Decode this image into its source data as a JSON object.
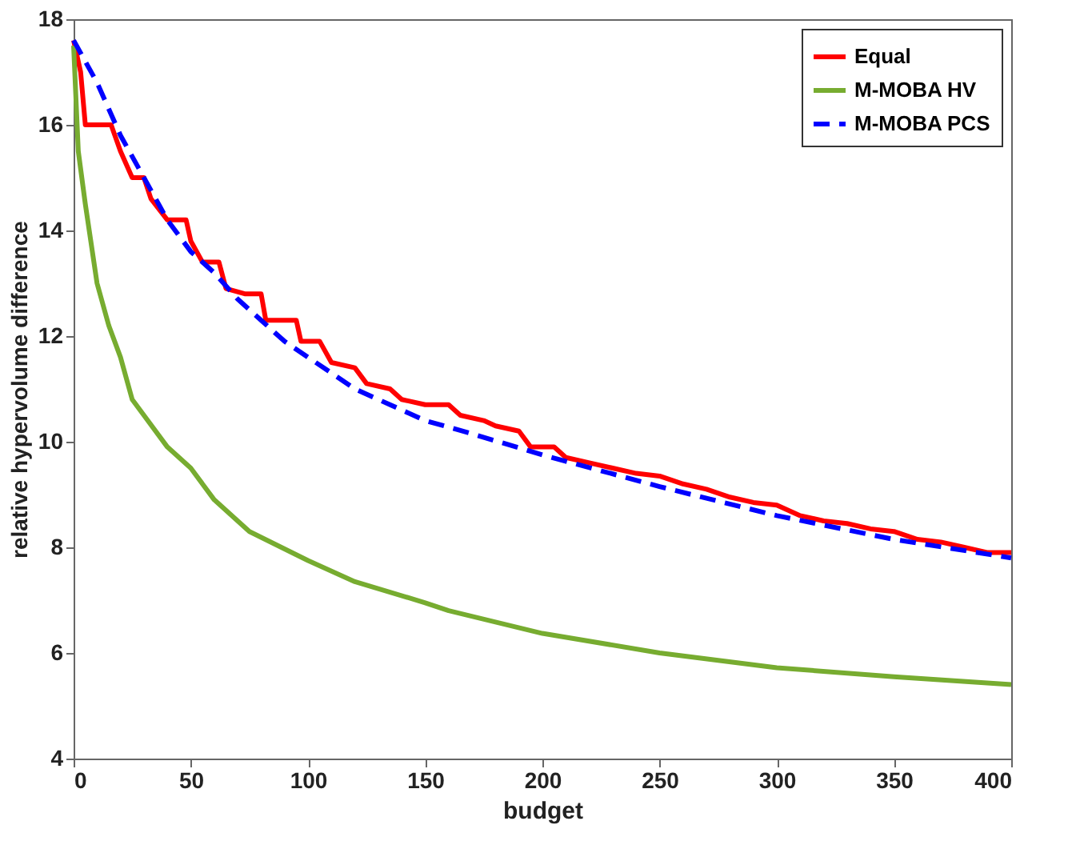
{
  "chart_data": {
    "type": "line",
    "xlabel": "budget",
    "ylabel": "relative hypervolume difference",
    "xlim": [
      0,
      400
    ],
    "xticks": [
      0,
      50,
      100,
      150,
      200,
      250,
      300,
      350,
      400
    ],
    "ylim": [
      4,
      18
    ],
    "yticks": [
      4,
      6,
      8,
      10,
      12,
      14,
      16,
      18
    ],
    "grid": false,
    "legend": "top right",
    "series": [
      {
        "name": "Equal",
        "color": "#ff0000",
        "line_style": "solid",
        "x": [
          0,
          3,
          5,
          16,
          20,
          25,
          30,
          33,
          40,
          48,
          50,
          55,
          62,
          65,
          73,
          80,
          82,
          95,
          97,
          105,
          110,
          120,
          125,
          135,
          140,
          150,
          160,
          165,
          175,
          180,
          190,
          195,
          205,
          210,
          220,
          230,
          240,
          250,
          260,
          270,
          280,
          290,
          300,
          310,
          320,
          330,
          340,
          350,
          360,
          370,
          380,
          390,
          400
        ],
        "values": [
          17.6,
          17.0,
          16.0,
          16.0,
          15.5,
          15.0,
          15.0,
          14.6,
          14.2,
          14.2,
          13.8,
          13.4,
          13.4,
          12.9,
          12.8,
          12.8,
          12.3,
          12.3,
          11.9,
          11.9,
          11.5,
          11.4,
          11.1,
          11.0,
          10.8,
          10.7,
          10.7,
          10.5,
          10.4,
          10.3,
          10.2,
          9.9,
          9.9,
          9.7,
          9.6,
          9.5,
          9.4,
          9.35,
          9.2,
          9.1,
          8.95,
          8.85,
          8.8,
          8.6,
          8.5,
          8.45,
          8.35,
          8.3,
          8.15,
          8.1,
          8.0,
          7.9,
          7.9
        ]
      },
      {
        "name": "M-MOBA HV",
        "color": "#77ac30",
        "line_style": "solid",
        "x": [
          0,
          2,
          5,
          10,
          15,
          20,
          25,
          30,
          40,
          50,
          60,
          75,
          100,
          120,
          150,
          160,
          200,
          250,
          300,
          350,
          400
        ],
        "values": [
          17.5,
          15.5,
          14.5,
          13.0,
          12.2,
          11.6,
          10.8,
          10.5,
          9.9,
          9.5,
          8.9,
          8.3,
          7.75,
          7.35,
          6.95,
          6.8,
          6.37,
          6.0,
          5.72,
          5.55,
          5.4
        ]
      },
      {
        "name": "M-MOBA PCS",
        "color": "#0000ff",
        "line_style": "dashed",
        "x": [
          0,
          10,
          20,
          30,
          40,
          50,
          60,
          70,
          80,
          90,
          100,
          110,
          120,
          130,
          140,
          150,
          170,
          200,
          250,
          300,
          350,
          400
        ],
        "values": [
          17.6,
          16.8,
          15.8,
          15.0,
          14.2,
          13.6,
          13.2,
          12.7,
          12.3,
          11.9,
          11.6,
          11.3,
          11.0,
          10.8,
          10.6,
          10.4,
          10.15,
          9.75,
          9.15,
          8.6,
          8.15,
          7.8
        ]
      }
    ]
  }
}
